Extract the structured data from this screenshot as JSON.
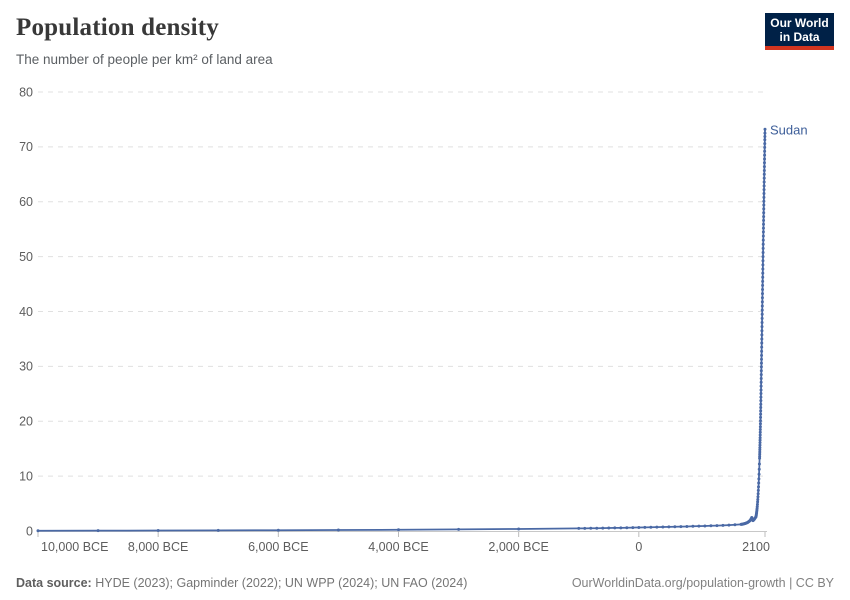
{
  "header": {
    "title": "Population density",
    "subtitle": "The number of people per km² of land area",
    "logo": {
      "line1": "Our World",
      "line2": "in Data"
    }
  },
  "footer": {
    "sources_label": "Data source:",
    "sources": "HYDE (2023); Gapminder (2022); UN WPP (2024); UN FAO (2024)",
    "note": "OurWorldinData.org/population-growth | CC BY"
  },
  "colors": {
    "line": "#4a69a5",
    "entity_label": "#3d5e99",
    "gridline": "#e0e0e0",
    "axis_line": "#c8c8c8",
    "tick_mark": "#bcbcbc",
    "tick_label": "#5d5d5d",
    "logo_bg": "#002147",
    "logo_red": "#d2351f"
  },
  "chart_data": {
    "type": "line",
    "title": "Population density",
    "subtitle": "The number of people per km² of land area",
    "xlabel": "",
    "ylabel": "",
    "xlim": [
      -10000,
      2100
    ],
    "ylim": [
      0,
      80
    ],
    "grid": "dashed-horizontal",
    "legend_position": "end-of-line-label",
    "yticks": [
      0,
      10,
      20,
      30,
      40,
      50,
      60,
      70,
      80
    ],
    "xticks": [
      {
        "value": -10000,
        "label": "10,000 BCE"
      },
      {
        "value": -8000,
        "label": "8,000 BCE"
      },
      {
        "value": -6000,
        "label": "6,000 BCE"
      },
      {
        "value": -4000,
        "label": "4,000 BCE"
      },
      {
        "value": -2000,
        "label": "2,000 BCE"
      },
      {
        "value": 0,
        "label": "0"
      },
      {
        "value": 2100,
        "label": "2100"
      }
    ],
    "series": [
      {
        "name": "Sudan",
        "color": "#4a69a5",
        "points": [
          [
            -10000,
            0.05
          ],
          [
            -9000,
            0.07
          ],
          [
            -8000,
            0.09
          ],
          [
            -7000,
            0.11
          ],
          [
            -6000,
            0.14
          ],
          [
            -5000,
            0.18
          ],
          [
            -4000,
            0.23
          ],
          [
            -3000,
            0.29
          ],
          [
            -2000,
            0.37
          ],
          [
            -1000,
            0.47
          ],
          [
            -900,
            0.48
          ],
          [
            -800,
            0.5
          ],
          [
            -700,
            0.51
          ],
          [
            -600,
            0.53
          ],
          [
            -500,
            0.55
          ],
          [
            -400,
            0.56
          ],
          [
            -300,
            0.58
          ],
          [
            -200,
            0.6
          ],
          [
            -100,
            0.62
          ],
          [
            0,
            0.64
          ],
          [
            100,
            0.66
          ],
          [
            200,
            0.68
          ],
          [
            300,
            0.7
          ],
          [
            400,
            0.73
          ],
          [
            500,
            0.75
          ],
          [
            600,
            0.78
          ],
          [
            700,
            0.8
          ],
          [
            800,
            0.83
          ],
          [
            900,
            0.86
          ],
          [
            1000,
            0.89
          ],
          [
            1100,
            0.92
          ],
          [
            1200,
            0.95
          ],
          [
            1300,
            0.99
          ],
          [
            1400,
            1.03
          ],
          [
            1500,
            1.08
          ],
          [
            1600,
            1.14
          ],
          [
            1700,
            1.21
          ],
          [
            1710,
            1.22
          ],
          [
            1720,
            1.24
          ],
          [
            1730,
            1.26
          ],
          [
            1740,
            1.28
          ],
          [
            1750,
            1.31
          ],
          [
            1760,
            1.34
          ],
          [
            1770,
            1.37
          ],
          [
            1780,
            1.41
          ],
          [
            1790,
            1.45
          ],
          [
            1800,
            1.5
          ],
          [
            1810,
            1.56
          ],
          [
            1820,
            1.63
          ],
          [
            1830,
            1.71
          ],
          [
            1840,
            1.8
          ],
          [
            1850,
            1.9
          ],
          [
            1860,
            2.05
          ],
          [
            1870,
            2.25
          ],
          [
            1880,
            2.45
          ],
          [
            1890,
            2.2
          ],
          [
            1900,
            1.9
          ],
          [
            1910,
            2.0
          ],
          [
            1920,
            2.12
          ],
          [
            1930,
            2.27
          ],
          [
            1940,
            2.43
          ],
          [
            1950,
            2.6
          ],
          [
            1953,
            2.8
          ],
          [
            1956,
            3.0
          ],
          [
            1959,
            3.25
          ],
          [
            1962,
            3.5
          ],
          [
            1965,
            3.8
          ],
          [
            1968,
            4.1
          ],
          [
            1971,
            4.45
          ],
          [
            1974,
            4.85
          ],
          [
            1977,
            5.3
          ],
          [
            1980,
            5.75
          ],
          [
            1983,
            6.25
          ],
          [
            1986,
            6.8
          ],
          [
            1989,
            7.4
          ],
          [
            1992,
            8.05
          ],
          [
            1995,
            8.75
          ],
          [
            1998,
            9.5
          ],
          [
            2001,
            10.35
          ],
          [
            2004,
            11.25
          ],
          [
            2007,
            12.2
          ],
          [
            2010,
            13.25
          ],
          [
            2011,
            13.6
          ],
          [
            2012,
            14.0
          ],
          [
            2013,
            14.4
          ],
          [
            2014,
            14.8
          ],
          [
            2015,
            15.2
          ],
          [
            2016,
            15.65
          ],
          [
            2017,
            16.1
          ],
          [
            2018,
            16.55
          ],
          [
            2019,
            17.0
          ],
          [
            2020,
            17.5
          ],
          [
            2021,
            18.0
          ],
          [
            2022,
            18.5
          ],
          [
            2023,
            19.0
          ],
          [
            2024,
            19.55
          ],
          [
            2025,
            20.1
          ],
          [
            2026,
            20.7
          ],
          [
            2027,
            21.3
          ],
          [
            2028,
            21.9
          ],
          [
            2029,
            22.5
          ],
          [
            2030,
            23.1
          ],
          [
            2031,
            23.75
          ],
          [
            2032,
            24.4
          ],
          [
            2033,
            25.05
          ],
          [
            2034,
            25.7
          ],
          [
            2035,
            26.4
          ],
          [
            2036,
            27.1
          ],
          [
            2037,
            27.8
          ],
          [
            2038,
            28.5
          ],
          [
            2039,
            29.2
          ],
          [
            2040,
            29.9
          ],
          [
            2041,
            30.6
          ],
          [
            2042,
            31.3
          ],
          [
            2043,
            32.0
          ],
          [
            2044,
            32.75
          ],
          [
            2045,
            33.5
          ],
          [
            2046,
            34.25
          ],
          [
            2047,
            35.0
          ],
          [
            2048,
            35.75
          ],
          [
            2049,
            36.5
          ],
          [
            2050,
            37.25
          ],
          [
            2051,
            38.0
          ],
          [
            2052,
            38.75
          ],
          [
            2053,
            39.5
          ],
          [
            2054,
            40.25
          ],
          [
            2055,
            41.0
          ],
          [
            2056,
            41.75
          ],
          [
            2057,
            42.5
          ],
          [
            2058,
            43.25
          ],
          [
            2059,
            44.0
          ],
          [
            2060,
            44.75
          ],
          [
            2061,
            45.5
          ],
          [
            2062,
            46.25
          ],
          [
            2063,
            47.0
          ],
          [
            2064,
            47.75
          ],
          [
            2065,
            48.5
          ],
          [
            2066,
            49.25
          ],
          [
            2067,
            50.0
          ],
          [
            2068,
            50.75
          ],
          [
            2069,
            51.5
          ],
          [
            2070,
            52.25
          ],
          [
            2071,
            53.0
          ],
          [
            2072,
            53.75
          ],
          [
            2073,
            54.5
          ],
          [
            2074,
            55.2
          ],
          [
            2075,
            55.9
          ],
          [
            2076,
            56.6
          ],
          [
            2077,
            57.3
          ],
          [
            2078,
            58.0
          ],
          [
            2079,
            58.7
          ],
          [
            2080,
            59.4
          ],
          [
            2081,
            60.1
          ],
          [
            2082,
            60.8
          ],
          [
            2083,
            61.5
          ],
          [
            2084,
            62.2
          ],
          [
            2085,
            62.9
          ],
          [
            2086,
            63.6
          ],
          [
            2087,
            64.3
          ],
          [
            2088,
            65.0
          ],
          [
            2089,
            65.7
          ],
          [
            2090,
            66.4
          ],
          [
            2091,
            67.1
          ],
          [
            2092,
            67.8
          ],
          [
            2093,
            68.5
          ],
          [
            2094,
            69.2
          ],
          [
            2095,
            69.9
          ],
          [
            2096,
            70.6
          ],
          [
            2097,
            71.3
          ],
          [
            2098,
            71.9
          ],
          [
            2099,
            72.5
          ],
          [
            2100,
            73.2
          ]
        ]
      }
    ]
  }
}
